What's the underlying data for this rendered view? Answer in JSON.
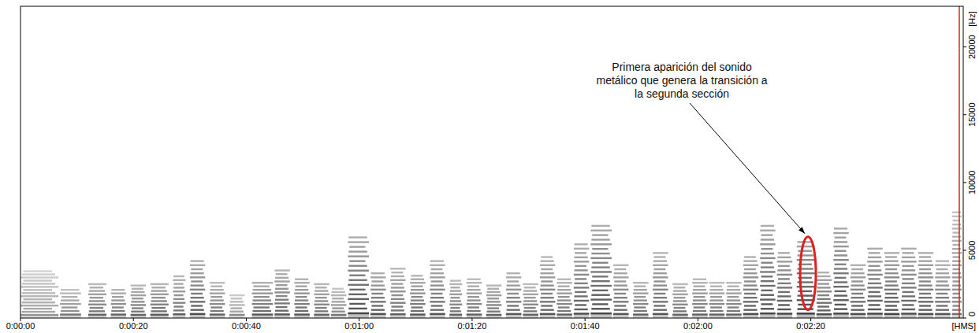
{
  "chart_data": {
    "type": "spectrogram",
    "xlabel": "[HMS]",
    "ylabel": "[Hz]",
    "xlim": [
      0,
      167
    ],
    "ylim": [
      0,
      23000
    ],
    "xticks": [
      {
        "value": 0,
        "label": "0:00:00"
      },
      {
        "value": 20,
        "label": "0:00:20"
      },
      {
        "value": 40,
        "label": "0:00:40"
      },
      {
        "value": 60,
        "label": "0:01:00"
      },
      {
        "value": 80,
        "label": "0:01:20"
      },
      {
        "value": 100,
        "label": "0:01:40"
      },
      {
        "value": 120,
        "label": "0:02:00"
      },
      {
        "value": 140,
        "label": "0:02:20"
      }
    ],
    "yticks": [
      0,
      5000,
      10000,
      15000,
      20000
    ],
    "grid": false,
    "color": "#2a2a2a",
    "x": [
      0,
      7,
      12,
      16,
      19.5,
      23,
      27,
      30,
      33.5,
      37,
      41,
      45,
      48.5,
      52,
      55,
      58,
      62,
      65.5,
      69,
      72.5,
      76,
      79,
      82.5,
      86,
      89,
      92,
      95,
      98,
      101,
      105,
      108.5,
      112,
      115.5,
      119,
      122,
      125,
      128,
      131,
      134,
      137.5,
      141,
      144,
      147,
      150,
      153,
      156,
      159,
      162,
      165
    ],
    "duration": [
      7,
      4,
      3.5,
      3,
      3,
      3.5,
      2.5,
      3,
      3,
      3,
      4,
      3,
      3,
      3,
      3,
      4,
      3,
      3,
      3,
      3,
      2.5,
      3,
      3,
      3,
      3,
      3,
      3,
      3,
      4,
      3,
      3,
      3,
      3,
      3,
      3,
      3,
      3,
      3,
      3,
      3.5,
      3,
      3,
      3,
      3,
      3,
      3,
      3,
      3,
      2
    ],
    "values": [
      3600,
      2200,
      2600,
      2300,
      2500,
      2600,
      3300,
      4300,
      2600,
      1800,
      2800,
      3600,
      3000,
      2700,
      2200,
      6000,
      3500,
      3800,
      3200,
      4300,
      2800,
      2900,
      2600,
      3500,
      2500,
      4500,
      3000,
      5500,
      6900,
      4000,
      2800,
      4800,
      2600,
      3000,
      2600,
      2700,
      4600,
      6900,
      5000,
      5800,
      3400,
      6900,
      4000,
      5200,
      4800,
      5400,
      5000,
      4200,
      8000
    ],
    "spacing": [
      230,
      260,
      250,
      260,
      240,
      250,
      280,
      300,
      260,
      240,
      260,
      270,
      260,
      250,
      240,
      350,
      300,
      280,
      260,
      300,
      250,
      260,
      240,
      300,
      250,
      300,
      260,
      320,
      340,
      300,
      260,
      300,
      250,
      260,
      260,
      260,
      300,
      340,
      320,
      330,
      280,
      330,
      300,
      320,
      300,
      320,
      300,
      300,
      300
    ],
    "level": [
      0.45,
      0.6,
      0.7,
      0.7,
      0.7,
      0.75,
      0.7,
      0.8,
      0.7,
      0.5,
      0.75,
      0.75,
      0.75,
      0.7,
      0.6,
      0.85,
      0.8,
      0.7,
      0.75,
      0.75,
      0.7,
      0.7,
      0.7,
      0.75,
      0.7,
      0.75,
      0.7,
      0.8,
      0.85,
      0.75,
      0.7,
      0.75,
      0.7,
      0.7,
      0.7,
      0.7,
      0.8,
      0.85,
      0.85,
      0.9,
      0.8,
      0.85,
      0.8,
      0.85,
      0.85,
      0.8,
      0.8,
      0.75,
      0.6
    ],
    "cursor": 166.3,
    "annotation": {
      "text": "Primera aparición del sonido metálico que genera la transición a la segunda sección",
      "x": 139.5,
      "y": [
        600,
        6000
      ],
      "color": "#e02020"
    }
  }
}
